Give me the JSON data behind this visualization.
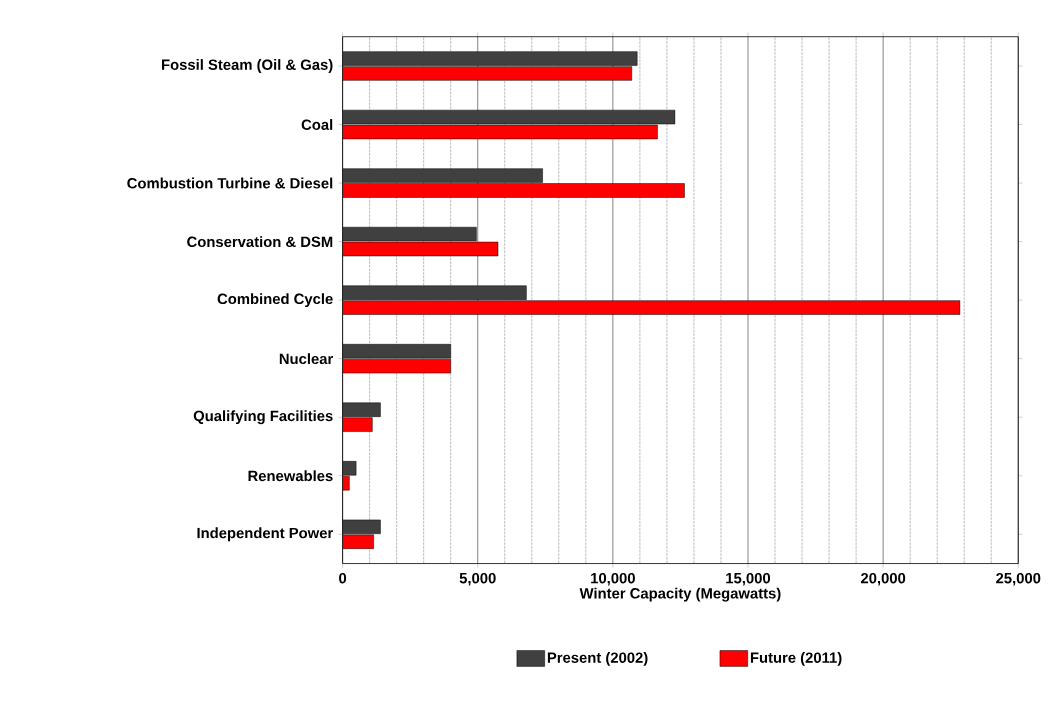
{
  "chart_data": {
    "type": "bar",
    "orientation": "horizontal",
    "xlabel": "Winter Capacity (Megawatts)",
    "categories": [
      "Fossil Steam (Oil & Gas)",
      "Coal",
      "Combustion Turbine & Diesel",
      "Conservation & DSM",
      "Combined Cycle",
      "Nuclear",
      "Qualifying Facilities",
      "Renewables",
      "Independent Power"
    ],
    "series": [
      {
        "name": "Present (2002)",
        "color": "#404040",
        "values": [
          10900,
          12300,
          7400,
          4950,
          6800,
          4000,
          1400,
          500,
          1400
        ]
      },
      {
        "name": "Future (2011)",
        "color": "#ff0000",
        "values": [
          10700,
          11650,
          12650,
          5750,
          22850,
          4000,
          1100,
          250,
          1150
        ]
      }
    ],
    "xlim": [
      0,
      25000
    ],
    "xticks": [
      0,
      {
        "value": 5000,
        "label": "5,000"
      },
      {
        "value": 10000,
        "label": "10,000"
      },
      {
        "value": 15000,
        "label": "15,000"
      },
      {
        "value": 20000,
        "label": "20,000"
      },
      {
        "value": 25000,
        "label": "25,000"
      }
    ],
    "grid": "x",
    "legend": "bottom"
  }
}
